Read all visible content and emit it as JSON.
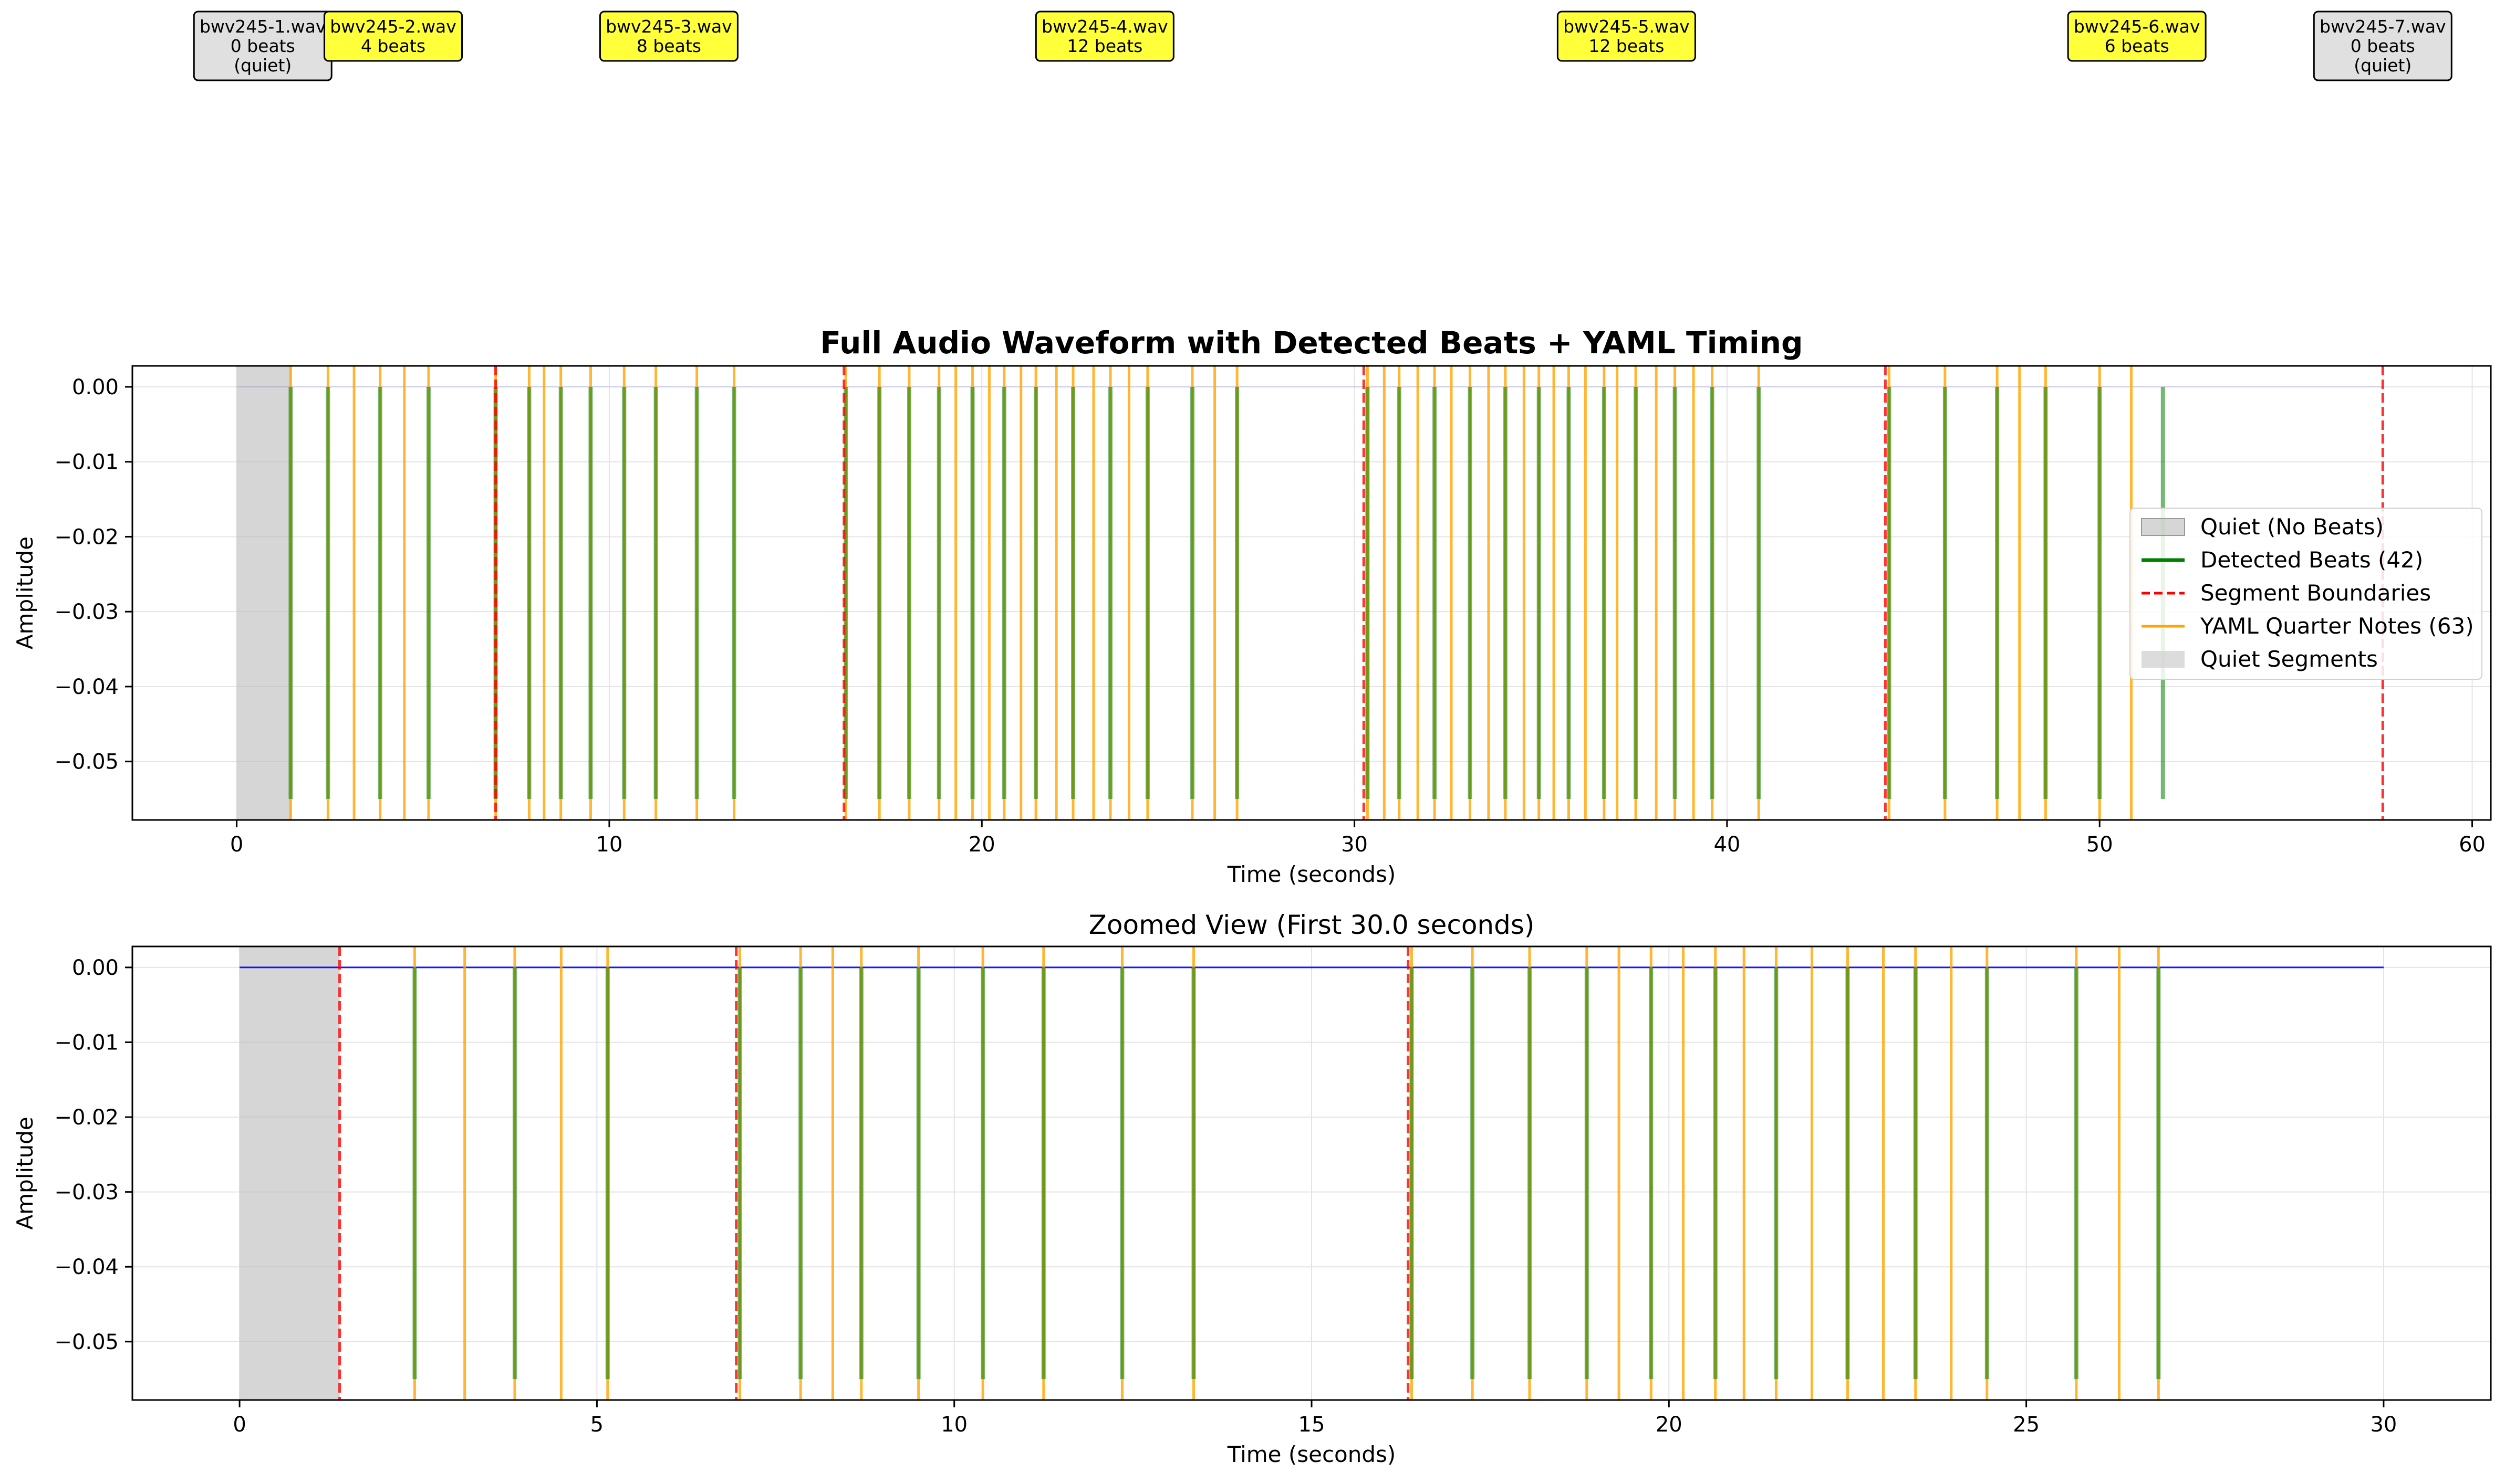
{
  "chart_data": [
    {
      "type": "line",
      "title": "Full Audio Waveform with Detected Beats + YAML Timing",
      "xlabel": "Time (seconds)",
      "ylabel": "Amplitude",
      "xlim": [
        -2.8,
        60.5
      ],
      "ylim": [
        -0.0578,
        0.0028
      ],
      "xticks": [
        0,
        10,
        20,
        30,
        40,
        50,
        60
      ],
      "yticks": [
        0.0,
        -0.01,
        -0.02,
        -0.03,
        -0.04,
        -0.05
      ],
      "xtick_labels": [
        "0",
        "10",
        "20",
        "30",
        "40",
        "50",
        "60"
      ],
      "ytick_labels": [
        "0.00",
        "−0.01",
        "−0.02",
        "−0.03",
        "−0.04",
        "−0.05"
      ],
      "grid": true,
      "legend_position": "center-right",
      "legend": [
        "Quiet (No Beats)",
        "Detected Beats (42)",
        "Segment Boundaries",
        "YAML Quarter Notes (63)",
        "Quiet Segments"
      ],
      "quiet_regions": [
        [
          0.0,
          1.45
        ]
      ],
      "waveform_end": 57.6,
      "beat_line_bottom": -0.055,
      "segment_boundaries": [
        6.95,
        16.3,
        30.25,
        44.25,
        57.6
      ],
      "detected_beats": [
        1.45,
        2.45,
        3.85,
        5.15,
        6.95,
        7.85,
        8.7,
        9.5,
        10.4,
        11.25,
        12.35,
        13.35,
        16.35,
        17.25,
        18.05,
        18.85,
        19.75,
        20.6,
        21.45,
        22.45,
        23.45,
        24.45,
        25.65,
        26.85,
        30.35,
        31.2,
        32.15,
        33.1,
        34.05,
        34.95,
        35.75,
        36.7,
        37.55,
        38.6,
        39.6,
        40.85,
        44.35,
        45.85,
        47.25,
        48.55,
        50.0,
        51.7
      ],
      "yaml_quarter_notes": [
        1.45,
        2.45,
        3.15,
        3.85,
        4.5,
        5.15,
        6.95,
        7.85,
        8.25,
        8.7,
        9.5,
        10.4,
        11.25,
        12.35,
        13.35,
        16.35,
        17.25,
        18.05,
        18.85,
        19.3,
        19.75,
        20.2,
        20.6,
        21.05,
        21.45,
        22.0,
        22.45,
        23.0,
        23.45,
        23.95,
        24.45,
        25.65,
        26.25,
        26.85,
        30.35,
        30.8,
        31.2,
        31.7,
        32.15,
        32.6,
        33.1,
        33.6,
        34.05,
        34.55,
        34.95,
        35.35,
        35.75,
        36.2,
        36.7,
        37.05,
        37.55,
        38.1,
        38.6,
        39.1,
        39.6,
        40.85,
        44.35,
        45.85,
        47.25,
        47.85,
        48.55,
        50.0,
        50.85
      ],
      "segments": [
        {
          "label": "bwv245-1.wav",
          "beats": "0 beats",
          "note": "(quiet)",
          "x": 0.7,
          "quiet": true
        },
        {
          "label": "bwv245-2.wav",
          "beats": "4 beats",
          "note": "",
          "x": 4.2,
          "quiet": false
        },
        {
          "label": "bwv245-3.wav",
          "beats": "8 beats",
          "note": "",
          "x": 11.6,
          "quiet": false
        },
        {
          "label": "bwv245-4.wav",
          "beats": "12 beats",
          "note": "",
          "x": 23.3,
          "quiet": false
        },
        {
          "label": "bwv245-5.wav",
          "beats": "12 beats",
          "note": "",
          "x": 37.3,
          "quiet": false
        },
        {
          "label": "bwv245-6.wav",
          "beats": "6 beats",
          "note": "",
          "x": 51.0,
          "quiet": false
        },
        {
          "label": "bwv245-7.wav",
          "beats": "0 beats",
          "note": "(quiet)",
          "x": 57.6,
          "quiet": true
        }
      ]
    },
    {
      "type": "line",
      "title": "Zoomed View (First 30.0 seconds)",
      "xlabel": "Time (seconds)",
      "ylabel": "Amplitude",
      "xlim": [
        -1.5,
        31.5
      ],
      "ylim": [
        -0.0578,
        0.0028
      ],
      "xticks": [
        0,
        5,
        10,
        15,
        20,
        25,
        30
      ],
      "yticks": [
        0.0,
        -0.01,
        -0.02,
        -0.03,
        -0.04,
        -0.05
      ],
      "xtick_labels": [
        "0",
        "5",
        "10",
        "15",
        "20",
        "25",
        "30"
      ],
      "ytick_labels": [
        "0.00",
        "−0.01",
        "−0.02",
        "−0.03",
        "−0.04",
        "−0.05"
      ],
      "grid": true,
      "quiet_regions": [
        [
          0.0,
          1.4
        ]
      ],
      "waveform_end": 30.0,
      "beat_line_bottom": -0.055,
      "segment_boundaries": [
        1.4,
        6.95,
        16.35
      ],
      "detected_beats": [
        2.45,
        3.85,
        5.15,
        7.0,
        7.85,
        8.7,
        9.5,
        10.4,
        11.25,
        12.35,
        13.35,
        16.4,
        17.25,
        18.05,
        18.85,
        19.75,
        20.65,
        21.5,
        22.5,
        23.45,
        24.45,
        25.7,
        26.85
      ],
      "yaml_quarter_notes": [
        2.45,
        3.15,
        3.85,
        4.5,
        5.15,
        7.0,
        7.85,
        8.3,
        8.7,
        9.5,
        10.4,
        11.25,
        12.35,
        13.35,
        16.4,
        17.25,
        18.05,
        18.85,
        19.3,
        19.75,
        20.2,
        20.65,
        21.05,
        21.5,
        22.0,
        22.5,
        23.0,
        23.45,
        23.95,
        24.45,
        25.7,
        26.3,
        26.85
      ]
    }
  ]
}
